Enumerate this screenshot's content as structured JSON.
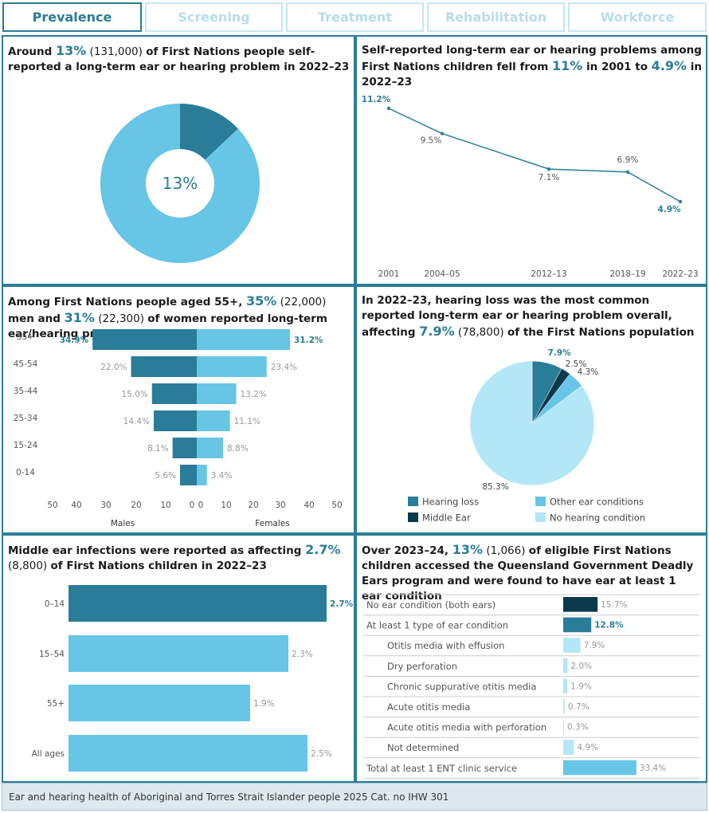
{
  "tabs": [
    "Prevalence",
    "Screening",
    "Treatment",
    "Rehabilitation",
    "Workforce"
  ],
  "panel1": {
    "t1": "Around ",
    "hl1": "13%",
    "t2": " (131,000) ",
    "t3": "of First Nations people self-reported a long-term ear or hearing problem in 2022–23"
  },
  "panel2": {
    "t1": "Self-reported long-term ear or hearing problems among First Nations children fell from ",
    "hl1": "11%",
    "t2": " in 2001 to ",
    "hl2": "4.9%",
    "t3": " in 2022–23"
  },
  "panel3": {
    "t1": "Among First Nations people aged 55+, ",
    "hl1": "35%",
    "t2": " (22,000) ",
    "t3": "men and ",
    "hl2": "31%",
    "t4": " (22,300) ",
    "t5": "of women reported long-term ear/hearing problems"
  },
  "panel4": {
    "t1": "In 2022–23, hearing loss was the most common reported long-term ear or hearing problem overall, affecting ",
    "hl1": "7.9%",
    "t2": " (78,800) ",
    "t3": "of the First Nations population"
  },
  "panel5": {
    "t1": "Middle ear infections were reported as affecting ",
    "hl1": "2.7%",
    "t2": " (8,800) ",
    "t3": "of First Nations children in 2022–23"
  },
  "panel6": {
    "t1": "Over 2023–24, ",
    "hl1": "13%",
    "t2": " (1,066) ",
    "t3": "of eligible First Nations children accessed the Queensland Government Deadly Ears program and were found to have ear at least 1 ear condition"
  },
  "footer": "Ear and hearing health of Aboriginal and Torres Strait Islander people 2025 Cat. no IHW 301",
  "colors": {
    "dark": "#2a7d98",
    "light": "#67c5e6",
    "navy": "#0c3a4c",
    "pale": "#b3e7f7"
  },
  "chart_data": [
    {
      "type": "pie",
      "center_label": "13%",
      "slices": [
        {
          "value": 13,
          "color": "#2a7d98"
        },
        {
          "value": 87,
          "color": "#67c5e6"
        }
      ]
    },
    {
      "type": "line",
      "x": [
        "2001",
        "2004–05",
        "2012–13",
        "2018–19",
        "2022–23"
      ],
      "values": [
        11.2,
        9.5,
        7.1,
        6.9,
        4.9
      ],
      "labels": [
        "11.2%",
        "9.5%",
        "7.1%",
        "6.9%",
        "4.9%"
      ],
      "grid": false
    },
    {
      "type": "bar",
      "orientation": "horizontal-butterfly",
      "categories": [
        "55+",
        "45-54",
        "35-44",
        "25-34",
        "15-24",
        "0-14"
      ],
      "series": [
        {
          "name": "Males",
          "values": [
            34.9,
            22.0,
            15.0,
            14.4,
            8.1,
            5.6
          ],
          "labels": [
            "34.9%",
            "22.0%",
            "15.0%",
            "14.4%",
            "8.1%",
            "5.6%"
          ]
        },
        {
          "name": "Females",
          "values": [
            31.2,
            23.4,
            13.2,
            11.1,
            8.8,
            3.4
          ],
          "labels": [
            "31.2%",
            "23.4%",
            "13.2%",
            "11.1%",
            "8.8%",
            "3.4%"
          ]
        }
      ],
      "ticks_left": [
        "50",
        "40",
        "30",
        "20",
        "10",
        "0"
      ],
      "ticks_right": [
        "0",
        "10",
        "20",
        "30",
        "40",
        "50"
      ],
      "xlim": [
        0,
        50
      ]
    },
    {
      "type": "pie",
      "slices": [
        {
          "name": "Hearing loss",
          "value": 7.9,
          "label": "7.9%",
          "color": "#2a7d98"
        },
        {
          "name": "Middle Ear",
          "value": 2.5,
          "label": "2.5%",
          "color": "#0c3a4c"
        },
        {
          "name": "Other ear conditions",
          "value": 4.3,
          "label": "4.3%",
          "color": "#67c5e6"
        },
        {
          "name": "No hearing condition",
          "value": 85.3,
          "label": "85.3%",
          "color": "#b3e7f7"
        }
      ],
      "legend": "bottom"
    },
    {
      "type": "bar",
      "orientation": "horizontal",
      "categories": [
        "0–14",
        "15–54",
        "55+",
        "All ages"
      ],
      "values": [
        2.7,
        2.3,
        1.9,
        2.5
      ],
      "labels": [
        "2.7%",
        "2.3%",
        "1.9%",
        "2.5%"
      ]
    },
    {
      "type": "bar",
      "orientation": "horizontal",
      "categories": [
        "No ear condition (both ears)",
        "At least 1 type of ear condition",
        "Otitis media with effusion",
        "Dry perforation",
        "Chronic suppurative otitis media",
        "Acute otitis media",
        "Acute otitis media with perforation",
        "Not determined",
        "Total at least 1 ENT clinic service"
      ],
      "values": [
        15.7,
        12.8,
        7.9,
        2.0,
        1.9,
        0.7,
        0.3,
        4.9,
        33.4
      ],
      "labels": [
        "15.7%",
        "12.8%",
        "7.9%",
        "2.0%",
        "1.9%",
        "0.7%",
        "0.3%",
        "4.9%",
        "33.4%"
      ]
    }
  ]
}
